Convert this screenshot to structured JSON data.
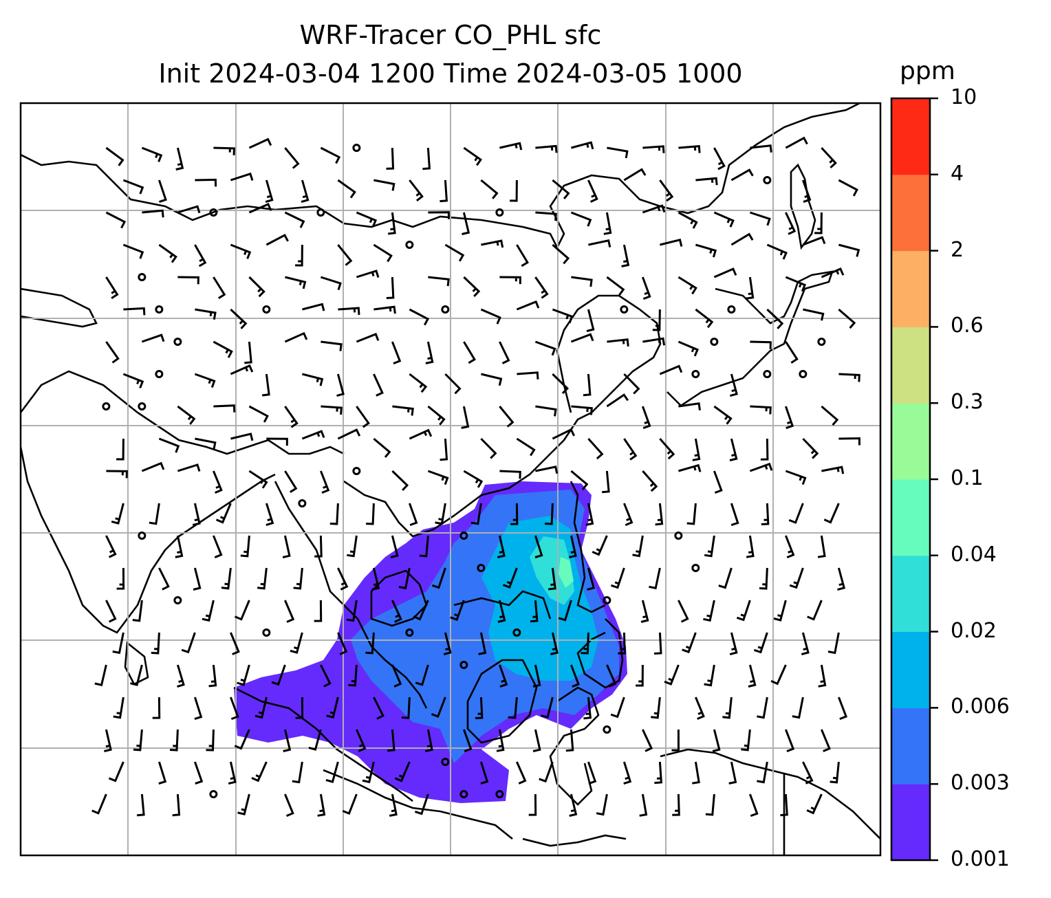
{
  "title_line1": "WRF-Tracer CO_PHL sfc",
  "title_line2": "Init 2024-03-04 1200 Time 2024-03-05 1000",
  "colorbar": {
    "units": "ppm",
    "ticks": [
      "0.001",
      "0.003",
      "0.006",
      "0.02",
      "0.04",
      "0.1",
      "0.3",
      "0.6",
      "2",
      "4",
      "10"
    ],
    "colors": [
      "#652bfc",
      "#3375f6",
      "#00b2eb",
      "#30dfd8",
      "#66fcbe",
      "#98fb98",
      "#cde182",
      "#fdb064",
      "#fd703a",
      "#fe2a16"
    ]
  },
  "chart_data": {
    "type": "heatmap",
    "title": "WRF-Tracer CO_PHL sfc / Init 2024-03-04 1200 Time 2024-03-05 1000",
    "variable": "CO_PHL tracer, surface",
    "units": "ppm",
    "levels": [
      0.001,
      0.003,
      0.006,
      0.02,
      0.04,
      0.1,
      0.3,
      0.6,
      2,
      4,
      10
    ],
    "overlay": "surface wind barbs",
    "grid": true
  }
}
